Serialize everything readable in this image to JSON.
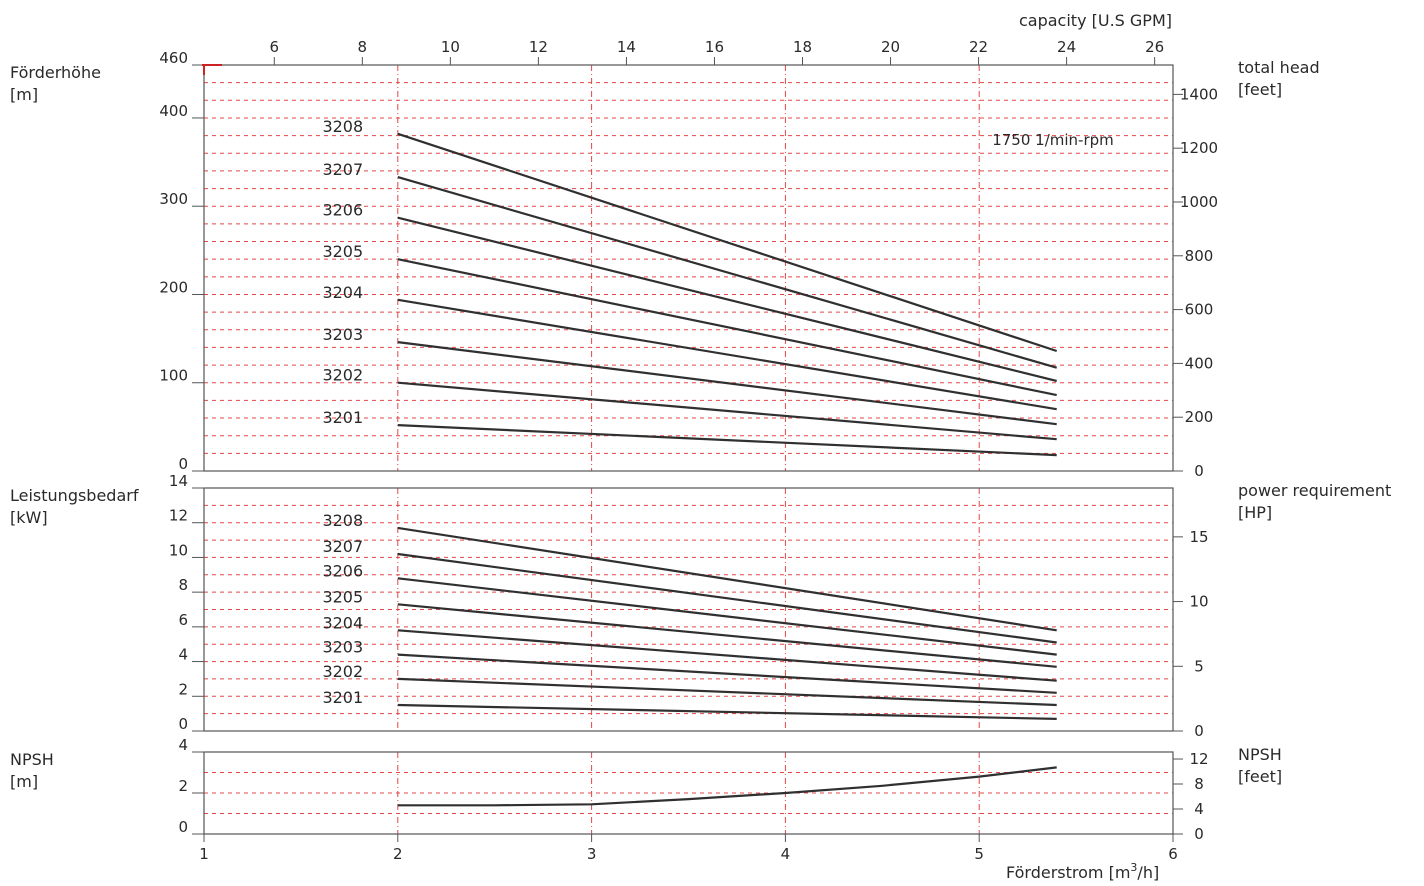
{
  "chart_data": {
    "type": "line",
    "x_axis": {
      "label": "Förderstrom [m³/h]",
      "label_main": "Förderstrom [m",
      "label_sup": "3",
      "label_tail": "/h]",
      "ticks": [
        1,
        2,
        3,
        4,
        5,
        6
      ],
      "range": [
        1,
        6
      ]
    },
    "x_axis_secondary": {
      "label": "capacity [U.S GPM]",
      "ticks": [
        6,
        8,
        10,
        12,
        14,
        16,
        18,
        20,
        22,
        24,
        26
      ]
    },
    "speed_note": "1750 1/min-rpm",
    "panels": [
      {
        "id": "head",
        "ylabel_left": [
          "Förderhöhe",
          "[m]"
        ],
        "ylabel_right": [
          "total head",
          "[feet]"
        ],
        "yticks_left": [
          0,
          100,
          200,
          300,
          400,
          460
        ],
        "yticks_right": [
          0,
          200,
          400,
          600,
          800,
          1000,
          1200,
          1400
        ],
        "ylim": [
          0,
          460
        ],
        "series": [
          {
            "name": "3208",
            "x": [
              2,
              5.4
            ],
            "y": [
              382,
              136
            ]
          },
          {
            "name": "3207",
            "x": [
              2,
              5.4
            ],
            "y": [
              333,
              117
            ]
          },
          {
            "name": "3206",
            "x": [
              2,
              5.4
            ],
            "y": [
              287,
              102
            ]
          },
          {
            "name": "3205",
            "x": [
              2,
              5.4
            ],
            "y": [
              240,
              86
            ]
          },
          {
            "name": "3204",
            "x": [
              2,
              5.4
            ],
            "y": [
              194,
              70
            ]
          },
          {
            "name": "3203",
            "x": [
              2,
              5.4
            ],
            "y": [
              146,
              53
            ]
          },
          {
            "name": "3202",
            "x": [
              2,
              5.4
            ],
            "y": [
              100,
              36
            ]
          },
          {
            "name": "3201",
            "x": [
              2,
              5.4
            ],
            "y": [
              52,
              18
            ]
          }
        ]
      },
      {
        "id": "power",
        "ylabel_left": [
          "Leistungsbedarf",
          "[kW]"
        ],
        "ylabel_right": [
          "power requirement",
          "[HP]"
        ],
        "yticks_left": [
          0,
          2,
          4,
          6,
          8,
          10,
          12,
          14
        ],
        "yticks_right": [
          0,
          5,
          10,
          15
        ],
        "ylim": [
          0,
          14
        ],
        "series": [
          {
            "name": "3208",
            "x": [
              2,
              5.4
            ],
            "y": [
              11.7,
              5.8
            ]
          },
          {
            "name": "3207",
            "x": [
              2,
              5.4
            ],
            "y": [
              10.2,
              5.1
            ]
          },
          {
            "name": "3206",
            "x": [
              2,
              5.4
            ],
            "y": [
              8.8,
              4.4
            ]
          },
          {
            "name": "3205",
            "x": [
              2,
              5.4
            ],
            "y": [
              7.3,
              3.7
            ]
          },
          {
            "name": "3204",
            "x": [
              2,
              5.4
            ],
            "y": [
              5.8,
              2.9
            ]
          },
          {
            "name": "3203",
            "x": [
              2,
              5.4
            ],
            "y": [
              4.4,
              2.2
            ]
          },
          {
            "name": "3202",
            "x": [
              2,
              5.4
            ],
            "y": [
              3.0,
              1.5
            ]
          },
          {
            "name": "3201",
            "x": [
              2,
              5.4
            ],
            "y": [
              1.5,
              0.7
            ]
          }
        ]
      },
      {
        "id": "npsh",
        "ylabel_left": [
          "NPSH",
          "[m]"
        ],
        "ylabel_right": [
          "NPSH",
          "[feet]"
        ],
        "yticks_left": [
          0,
          2,
          4
        ],
        "yticks_right": [
          0,
          4,
          8,
          12
        ],
        "ylim": [
          0,
          4
        ],
        "series": [
          {
            "name": "NPSH",
            "x": [
              2,
              2.5,
              3,
              3.5,
              4,
              4.5,
              5,
              5.4
            ],
            "y": [
              1.4,
              1.4,
              1.45,
              1.7,
              2.0,
              2.35,
              2.8,
              3.25
            ]
          }
        ]
      }
    ]
  }
}
